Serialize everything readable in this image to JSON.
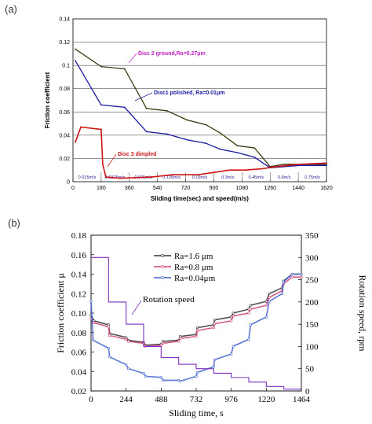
{
  "labels": {
    "panel_a": "(a)",
    "panel_b": "(b)"
  },
  "chart_data": [
    {
      "type": "line",
      "xlabel": "Sliding time(sec) and speed(m/s)",
      "ylabel": "Friction coefficient",
      "xlim": [
        0,
        1620
      ],
      "ylim": [
        0,
        0.14
      ],
      "x_ticks": [
        "0",
        "180",
        "360",
        "540",
        "720",
        "900",
        "1080",
        "1260",
        "1440",
        "1620"
      ],
      "y_ticks": [
        "0",
        "0.02",
        "0.04",
        "0.06",
        "0.08",
        "0.1",
        "0.12",
        "0.14"
      ],
      "grid": "horizontal",
      "speed_labels": [
        "0.015m/s",
        "0.0375m/s",
        "0.075m/s",
        "0.125m/s",
        "0.15m/s",
        "0.3m/s",
        "0.45m/s",
        "0.6m/s",
        "0.75m/s"
      ],
      "annotations": [
        {
          "text": "Disc 2 ground,Ra=0.27μm",
          "color": "#c020c0"
        },
        {
          "text": "Disc1 polished, Ra=0.01μm",
          "color": "#1a1aa0"
        },
        {
          "text": "Disc 3 dimpled",
          "color": "#cc1a1a"
        }
      ],
      "series": [
        {
          "color": "#3a3a10",
          "x": [
            15,
            180,
            330,
            470,
            600,
            730,
            850,
            940,
            1050,
            1160,
            1260,
            1350,
            1450,
            1620
          ],
          "y": [
            0.114,
            0.099,
            0.097,
            0.063,
            0.061,
            0.053,
            0.049,
            0.042,
            0.031,
            0.029,
            0.013,
            0.015,
            0.015,
            0.015
          ]
        },
        {
          "color": "#1a1aa0",
          "x": [
            15,
            180,
            330,
            470,
            600,
            730,
            850,
            940,
            1050,
            1160,
            1260,
            1350,
            1450,
            1620
          ],
          "y": [
            0.104,
            0.066,
            0.064,
            0.043,
            0.041,
            0.036,
            0.033,
            0.028,
            0.025,
            0.021,
            0.012,
            0.013,
            0.014,
            0.014
          ]
        },
        {
          "color": "#d01515",
          "x": [
            15,
            50,
            180,
            190,
            210,
            300,
            500,
            640,
            800,
            900,
            1000,
            1100,
            1200,
            1300,
            1450,
            1620
          ],
          "y": [
            0.034,
            0.047,
            0.045,
            0.015,
            0.004,
            0.003,
            0.004,
            0.006,
            0.006,
            0.008,
            0.01,
            0.01,
            0.011,
            0.013,
            0.015,
            0.016
          ]
        }
      ]
    },
    {
      "type": "line",
      "xlabel": "Sliding time, s",
      "ylabel": "Friction coefficient  μ",
      "y2label": "Rotation speed, rpm",
      "xlim": [
        0,
        1464
      ],
      "ylim": [
        0.02,
        0.18
      ],
      "y2lim": [
        0,
        350
      ],
      "x_ticks": [
        "0",
        "244",
        "488",
        "732",
        "976",
        "1220",
        "1464"
      ],
      "y_ticks": [
        "0.02",
        "0.04",
        "0.06",
        "0.08",
        "0.10",
        "0.12",
        "0.14",
        "0.16",
        "0.18"
      ],
      "y2_ticks": [
        "0",
        "50",
        "100",
        "150",
        "200",
        "250",
        "300",
        "350"
      ],
      "annotation": "Rotation speed",
      "legend_position": "top-right",
      "series": [
        {
          "name": "Ra=1.6  μm",
          "color": "#333333",
          "x": [
            0,
            20,
            122,
            130,
            244,
            260,
            366,
            380,
            488,
            500,
            610,
            620,
            732,
            740,
            854,
            860,
            976,
            990,
            1098,
            1110,
            1220,
            1240,
            1330,
            1340,
            1400,
            1464
          ],
          "y": [
            0.098,
            0.092,
            0.088,
            0.079,
            0.075,
            0.072,
            0.07,
            0.067,
            0.068,
            0.071,
            0.072,
            0.076,
            0.078,
            0.085,
            0.088,
            0.093,
            0.096,
            0.1,
            0.104,
            0.108,
            0.112,
            0.12,
            0.126,
            0.133,
            0.14,
            0.14
          ]
        },
        {
          "name": "Ra=0.8  μm",
          "color": "#d0407a",
          "x": [
            0,
            20,
            122,
            130,
            244,
            260,
            366,
            380,
            488,
            500,
            610,
            620,
            732,
            740,
            854,
            860,
            976,
            990,
            1098,
            1110,
            1220,
            1240,
            1330,
            1340,
            1400,
            1464
          ],
          "y": [
            0.094,
            0.09,
            0.086,
            0.077,
            0.073,
            0.071,
            0.069,
            0.066,
            0.067,
            0.069,
            0.071,
            0.074,
            0.076,
            0.082,
            0.085,
            0.089,
            0.092,
            0.097,
            0.1,
            0.104,
            0.108,
            0.116,
            0.123,
            0.13,
            0.137,
            0.137
          ]
        },
        {
          "name": "Ra=0.04μm",
          "color": "#4060d0",
          "x": [
            0,
            15,
            122,
            130,
            244,
            260,
            366,
            380,
            488,
            500,
            610,
            620,
            732,
            740,
            854,
            860,
            976,
            990,
            1098,
            1110,
            1220,
            1240,
            1330,
            1340,
            1400,
            1464
          ],
          "y": [
            0.112,
            0.072,
            0.064,
            0.055,
            0.047,
            0.043,
            0.038,
            0.035,
            0.034,
            0.031,
            0.031,
            0.03,
            0.035,
            0.039,
            0.045,
            0.052,
            0.058,
            0.066,
            0.073,
            0.088,
            0.096,
            0.112,
            0.12,
            0.132,
            0.14,
            0.14
          ]
        },
        {
          "name": "Rotation speed",
          "color": "#7a30c0",
          "axis": "right",
          "x": [
            0,
            122,
            122,
            244,
            244,
            366,
            366,
            488,
            488,
            610,
            610,
            732,
            732,
            854,
            854,
            976,
            976,
            1098,
            1098,
            1220,
            1220,
            1342,
            1342,
            1464
          ],
          "y": [
            300,
            300,
            200,
            200,
            150,
            150,
            100,
            100,
            75,
            75,
            60,
            60,
            50,
            50,
            40,
            40,
            30,
            30,
            20,
            20,
            10,
            10,
            4,
            4
          ]
        }
      ]
    }
  ]
}
